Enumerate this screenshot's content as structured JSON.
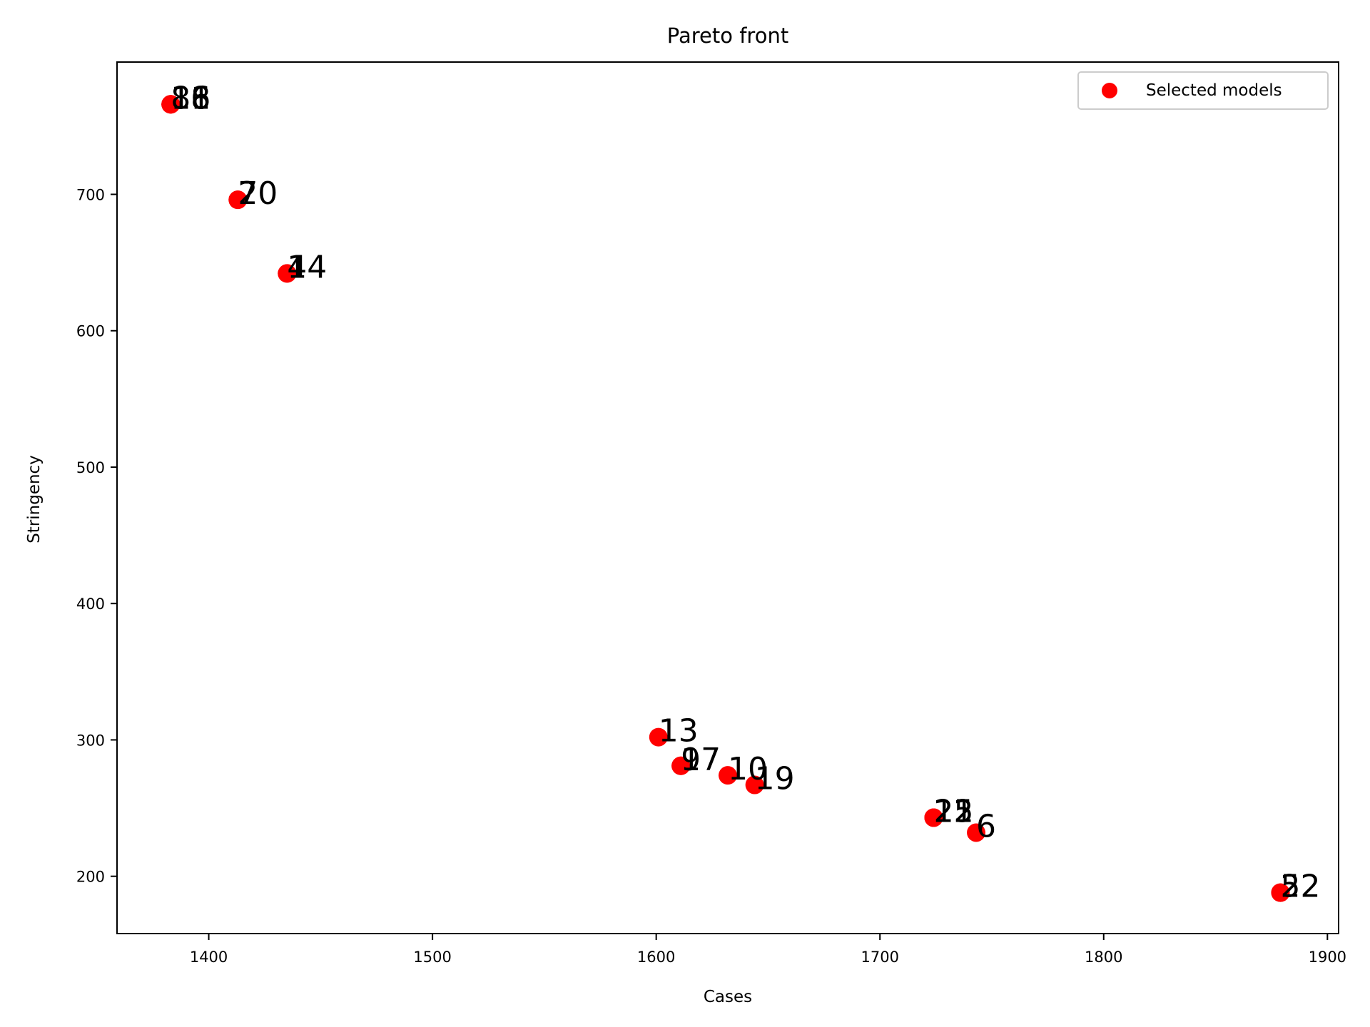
{
  "chart_data": {
    "type": "scatter",
    "title": "Pareto front",
    "xlabel": "Cases",
    "ylabel": "Stringency",
    "xlim": [
      1359,
      1905
    ],
    "ylim": [
      158,
      797
    ],
    "xticks": [
      1400,
      1500,
      1600,
      1700,
      1800,
      1900
    ],
    "yticks": [
      200,
      300,
      400,
      500,
      600,
      700
    ],
    "grid": false,
    "legend": {
      "placement": "top-right",
      "entries": [
        "Selected models"
      ]
    },
    "series": [
      {
        "name": "Selected models",
        "color": "#ff0000",
        "points": [
          {
            "x": 1383,
            "y": 766,
            "label": "8"
          },
          {
            "x": 1383,
            "y": 766,
            "label": "11"
          },
          {
            "x": 1383,
            "y": 766,
            "label": "16"
          },
          {
            "x": 1383,
            "y": 766,
            "label": "18"
          },
          {
            "x": 1413,
            "y": 696,
            "label": "7"
          },
          {
            "x": 1413,
            "y": 696,
            "label": "20"
          },
          {
            "x": 1435,
            "y": 642,
            "label": "4"
          },
          {
            "x": 1435,
            "y": 642,
            "label": "14"
          },
          {
            "x": 1601,
            "y": 302,
            "label": "13"
          },
          {
            "x": 1611,
            "y": 281,
            "label": "9"
          },
          {
            "x": 1611,
            "y": 281,
            "label": "17"
          },
          {
            "x": 1632,
            "y": 274,
            "label": "10"
          },
          {
            "x": 1644,
            "y": 267,
            "label": "19"
          },
          {
            "x": 1724,
            "y": 243,
            "label": "12"
          },
          {
            "x": 1724,
            "y": 243,
            "label": "15"
          },
          {
            "x": 1724,
            "y": 243,
            "label": "21"
          },
          {
            "x": 1743,
            "y": 232,
            "label": "6"
          },
          {
            "x": 1879,
            "y": 188,
            "label": "5"
          },
          {
            "x": 1879,
            "y": 188,
            "label": "22"
          }
        ]
      }
    ]
  }
}
